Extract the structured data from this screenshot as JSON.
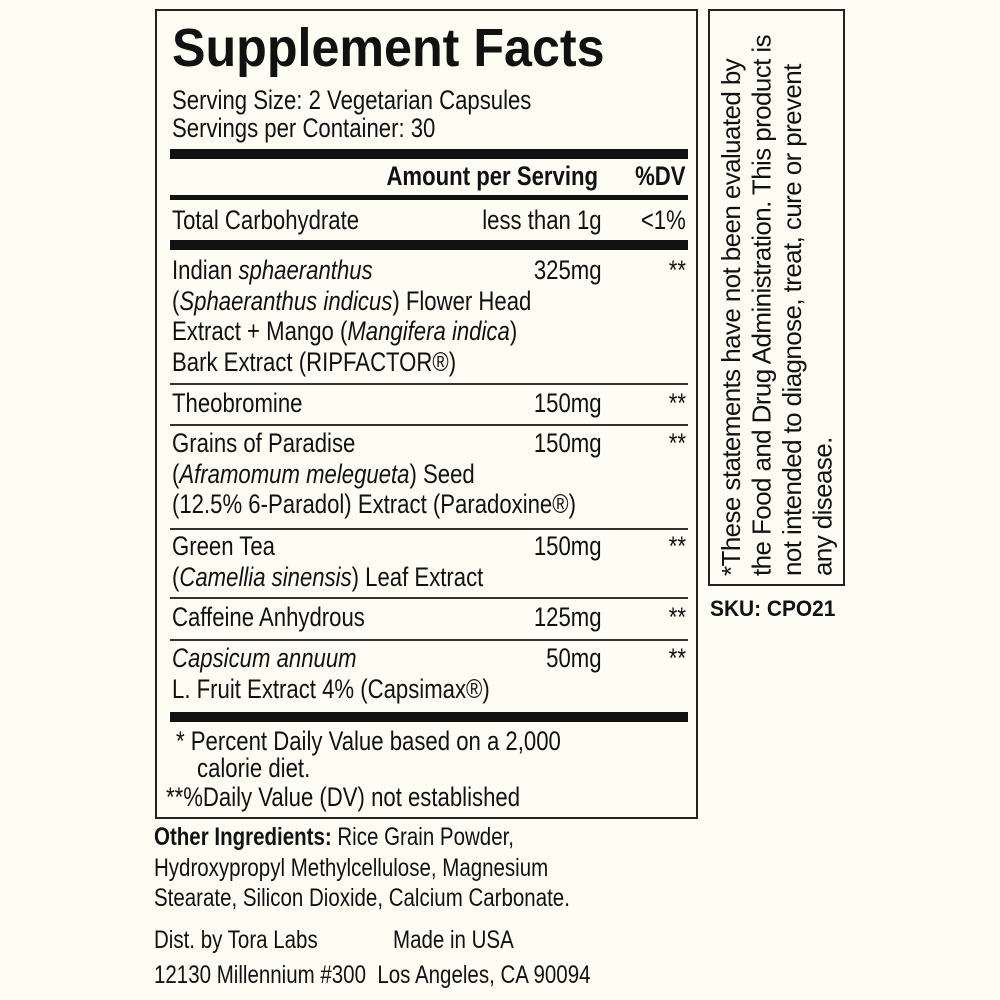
{
  "label": {
    "title": "Supplement Facts",
    "serving_size": "Serving Size: 2 Vegetarian Capsules",
    "servings_per_container": "Servings per Container: 30",
    "header_amount": "Amount per Serving",
    "header_dv": "%DV",
    "total_carb": {
      "name": "Total Carbohydrate",
      "amount": "less than 1g",
      "dv": "<1%"
    },
    "ingredients": [
      {
        "lines": [
          [
            {
              "t": "Indian "
            },
            {
              "t": "sphaeranthus",
              "i": true
            }
          ],
          [
            {
              "t": "(",
              "i": false
            },
            {
              "t": "Sphaeranthus indicus",
              "i": true
            },
            {
              "t": ") Flower Head"
            }
          ],
          [
            {
              "t": "Extract + Mango ("
            },
            {
              "t": "Mangifera indica",
              "i": true
            },
            {
              "t": ")"
            }
          ],
          [
            {
              "t": "Bark Extract (RIPFACTOR®)"
            }
          ]
        ],
        "amount": "325mg",
        "dv": "**"
      },
      {
        "lines": [
          [
            {
              "t": "Theobromine"
            }
          ]
        ],
        "amount": "150mg",
        "dv": "**"
      },
      {
        "lines": [
          [
            {
              "t": "Grains of Paradise"
            }
          ],
          [
            {
              "t": "("
            },
            {
              "t": "Aframomum melegueta",
              "i": true
            },
            {
              "t": ") Seed"
            }
          ],
          [
            {
              "t": "(12.5% 6-Paradol) Extract (Paradoxine®)"
            }
          ]
        ],
        "amount": "150mg",
        "dv": "**"
      },
      {
        "lines": [
          [
            {
              "t": "Green Tea"
            }
          ],
          [
            {
              "t": "("
            },
            {
              "t": "Camellia sinensis",
              "i": true
            },
            {
              "t": ") Leaf Extract"
            }
          ]
        ],
        "amount": "150mg",
        "dv": "**"
      },
      {
        "lines": [
          [
            {
              "t": "Caffeine Anhydrous"
            }
          ]
        ],
        "amount": "125mg",
        "dv": "**"
      },
      {
        "lines": [
          [
            {
              "t": "Capsicum annuum",
              "i": true
            }
          ],
          [
            {
              "t": "L. Fruit Extract 4% (Capsimax®)"
            }
          ]
        ],
        "amount": "50mg",
        "dv": "**"
      }
    ],
    "footnote_1a": "* Percent Daily Value based on a 2,000",
    "footnote_1b": "calorie diet.",
    "footnote_2": "**%Daily Value (DV) not established"
  },
  "disclaimer": {
    "asterisk": "*",
    "text": "These statements have not been evaluated by the Food and Drug Administration. This product is not intended to diagnose, treat, cure or prevent any disease."
  },
  "sku": "SKU: CPO21",
  "other_ingredients": {
    "label": "Other Ingredients:",
    "line1": " Rice Grain Powder,",
    "line2": "Hydroxypropyl Methylcellulose, Magnesium",
    "line3": "Stearate, Silicon Dioxide, Calcium Carbonate."
  },
  "distributor": {
    "dist": "Dist. by Tora Labs",
    "made_in": "Made in USA",
    "address": "12130 Millennium #300  Los Angeles, CA 90094"
  }
}
